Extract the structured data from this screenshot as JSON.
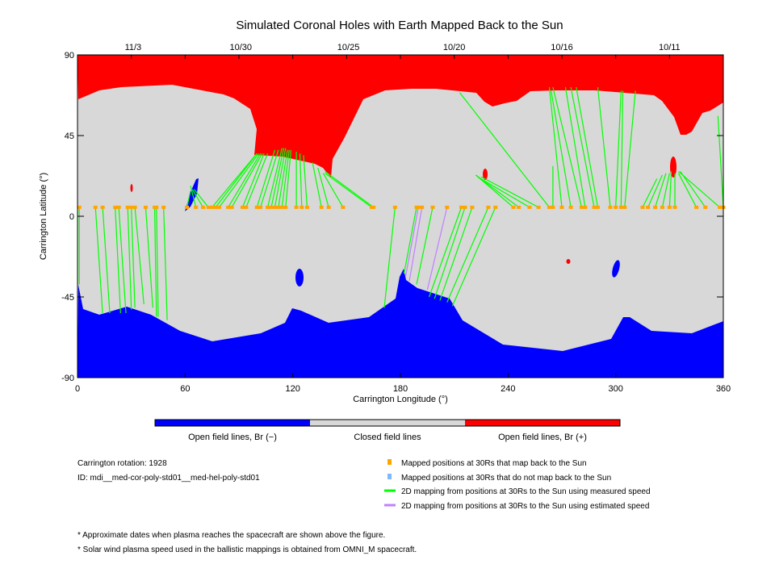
{
  "chart_data": {
    "type": "map",
    "title": "Simulated Coronal Holes with Earth Mapped Back to the Sun",
    "xlabel": "Carrington Longitude (°)",
    "ylabel": "Carrington Latitude (°)",
    "xlim": [
      0,
      360
    ],
    "ylim": [
      -90,
      90
    ],
    "x_ticks": [
      "0",
      "60",
      "120",
      "180",
      "240",
      "300",
      "360"
    ],
    "y_ticks": [
      "90",
      "45",
      "0",
      "-45",
      "-90"
    ],
    "top_dates": [
      {
        "label": "11/3",
        "lon": 31
      },
      {
        "label": "10/30",
        "lon": 91
      },
      {
        "label": "10/25",
        "lon": 151
      },
      {
        "label": "10/20",
        "lon": 210
      },
      {
        "label": "10/16",
        "lon": 270
      },
      {
        "label": "10/11",
        "lon": 330
      }
    ],
    "colors": {
      "open_negative": "#0000ff",
      "closed": "#d8d8d8",
      "open_positive": "#ff0000",
      "mapped_point": "#ffa500",
      "unmapped_point": "#80b8ff",
      "measured_line": "#00ff00",
      "estimated_line": "#c080ff"
    },
    "colorbar_labels": [
      "Open field lines, Br (−)",
      "Closed field lines",
      "Open field lines, Br (+)"
    ],
    "mapping_start_lat": 5,
    "mappings": [
      [
        1,
        1,
        -38,
        "m"
      ],
      [
        10,
        14,
        -54,
        "m"
      ],
      [
        14,
        18,
        -54,
        "m"
      ],
      [
        21,
        24,
        -54,
        "m"
      ],
      [
        23,
        27,
        -54,
        "m"
      ],
      [
        28,
        30,
        -52,
        "m"
      ],
      [
        30,
        32,
        -51,
        "m"
      ],
      [
        32,
        37,
        -49,
        "m"
      ],
      [
        38,
        42,
        -51,
        "m"
      ],
      [
        43,
        44,
        -56,
        "m"
      ],
      [
        44,
        45,
        -56,
        "m"
      ],
      [
        48,
        50,
        -58,
        "m"
      ],
      [
        61,
        63,
        14,
        "m"
      ],
      [
        66,
        63,
        17,
        "m"
      ],
      [
        70,
        64,
        15,
        "m"
      ],
      [
        73,
        65,
        15,
        "m"
      ],
      [
        75,
        100,
        35,
        "m"
      ],
      [
        77,
        100,
        35,
        "m"
      ],
      [
        79,
        101,
        35,
        "m"
      ],
      [
        84,
        102,
        35,
        "m"
      ],
      [
        86,
        103,
        35,
        "m"
      ],
      [
        92,
        104,
        35,
        "m"
      ],
      [
        94,
        106,
        35,
        "m"
      ],
      [
        100,
        110,
        37,
        "m"
      ],
      [
        102,
        112,
        37,
        "m"
      ],
      [
        106,
        114,
        38,
        "m"
      ],
      [
        108,
        115,
        38,
        "m"
      ],
      [
        110,
        116,
        38,
        "m"
      ],
      [
        112,
        117,
        37,
        "m"
      ],
      [
        114,
        118,
        37,
        "m"
      ],
      [
        116,
        119,
        37,
        "m"
      ],
      [
        122,
        122,
        36,
        "m"
      ],
      [
        125,
        124,
        35,
        "m"
      ],
      [
        128,
        126,
        34,
        "m"
      ],
      [
        136,
        131,
        30,
        "m"
      ],
      [
        140,
        134,
        27,
        "m"
      ],
      [
        148,
        137,
        24,
        "m"
      ],
      [
        164,
        138,
        24,
        "m"
      ],
      [
        165,
        138,
        25,
        "m"
      ],
      [
        177,
        171,
        -51,
        "m"
      ],
      [
        189,
        182,
        -32,
        "m"
      ],
      [
        190,
        183,
        -33,
        "e"
      ],
      [
        192,
        185,
        -36,
        "e"
      ],
      [
        198,
        189,
        -38,
        "m"
      ],
      [
        206,
        195,
        -41,
        "e"
      ],
      [
        214,
        196,
        -45,
        "m"
      ],
      [
        216,
        199,
        -46,
        "m"
      ],
      [
        220,
        202,
        -47,
        "m"
      ],
      [
        229,
        206,
        -48,
        "m"
      ],
      [
        233,
        209,
        -50,
        "m"
      ],
      [
        243,
        222,
        23,
        "m"
      ],
      [
        246,
        222,
        23,
        "m"
      ],
      [
        252,
        223,
        22,
        "m"
      ],
      [
        257,
        225,
        22,
        "m"
      ],
      [
        263,
        213,
        69,
        "m"
      ],
      [
        265,
        265,
        28,
        "m"
      ],
      [
        270,
        263,
        72,
        "m"
      ],
      [
        275,
        264,
        70,
        "m"
      ],
      [
        281,
        265,
        72,
        "m"
      ],
      [
        283,
        272,
        72,
        "m"
      ],
      [
        288,
        275,
        72,
        "m"
      ],
      [
        290,
        278,
        72,
        "m"
      ],
      [
        297,
        290,
        72,
        "m"
      ],
      [
        300,
        303,
        70,
        "m"
      ],
      [
        303,
        304,
        70,
        "m"
      ],
      [
        305,
        311,
        70,
        "m"
      ],
      [
        315,
        323,
        21,
        "m"
      ],
      [
        318,
        326,
        23,
        "m"
      ],
      [
        322,
        328,
        24,
        "m"
      ],
      [
        326,
        330,
        24,
        "m"
      ],
      [
        330,
        331,
        25,
        "m"
      ],
      [
        333,
        333,
        24,
        "m"
      ],
      [
        345,
        335,
        24,
        "m"
      ],
      [
        350,
        336,
        25,
        "m"
      ],
      [
        358,
        335,
        25,
        "m"
      ],
      [
        360,
        357,
        56,
        "m"
      ]
    ]
  },
  "info": {
    "rotation": "Carrington rotation: 1928",
    "id": "ID: mdi__med-cor-poly-std01__med-hel-poly-std01"
  },
  "legend": [
    "Mapped positions at 30Rs that map back to the Sun",
    "Mapped positions at 30Rs that do not map back to the Sun",
    "2D mapping from positions at 30Rs to the Sun using measured speed",
    "2D mapping from positions at 30Rs to the Sun using estimated speed"
  ],
  "notes": [
    "* Approximate dates when plasma reaches the spacecraft are shown above the figure.",
    "* Solar wind plasma speed used in the ballistic mappings is obtained from OMNI_M spacecraft."
  ]
}
